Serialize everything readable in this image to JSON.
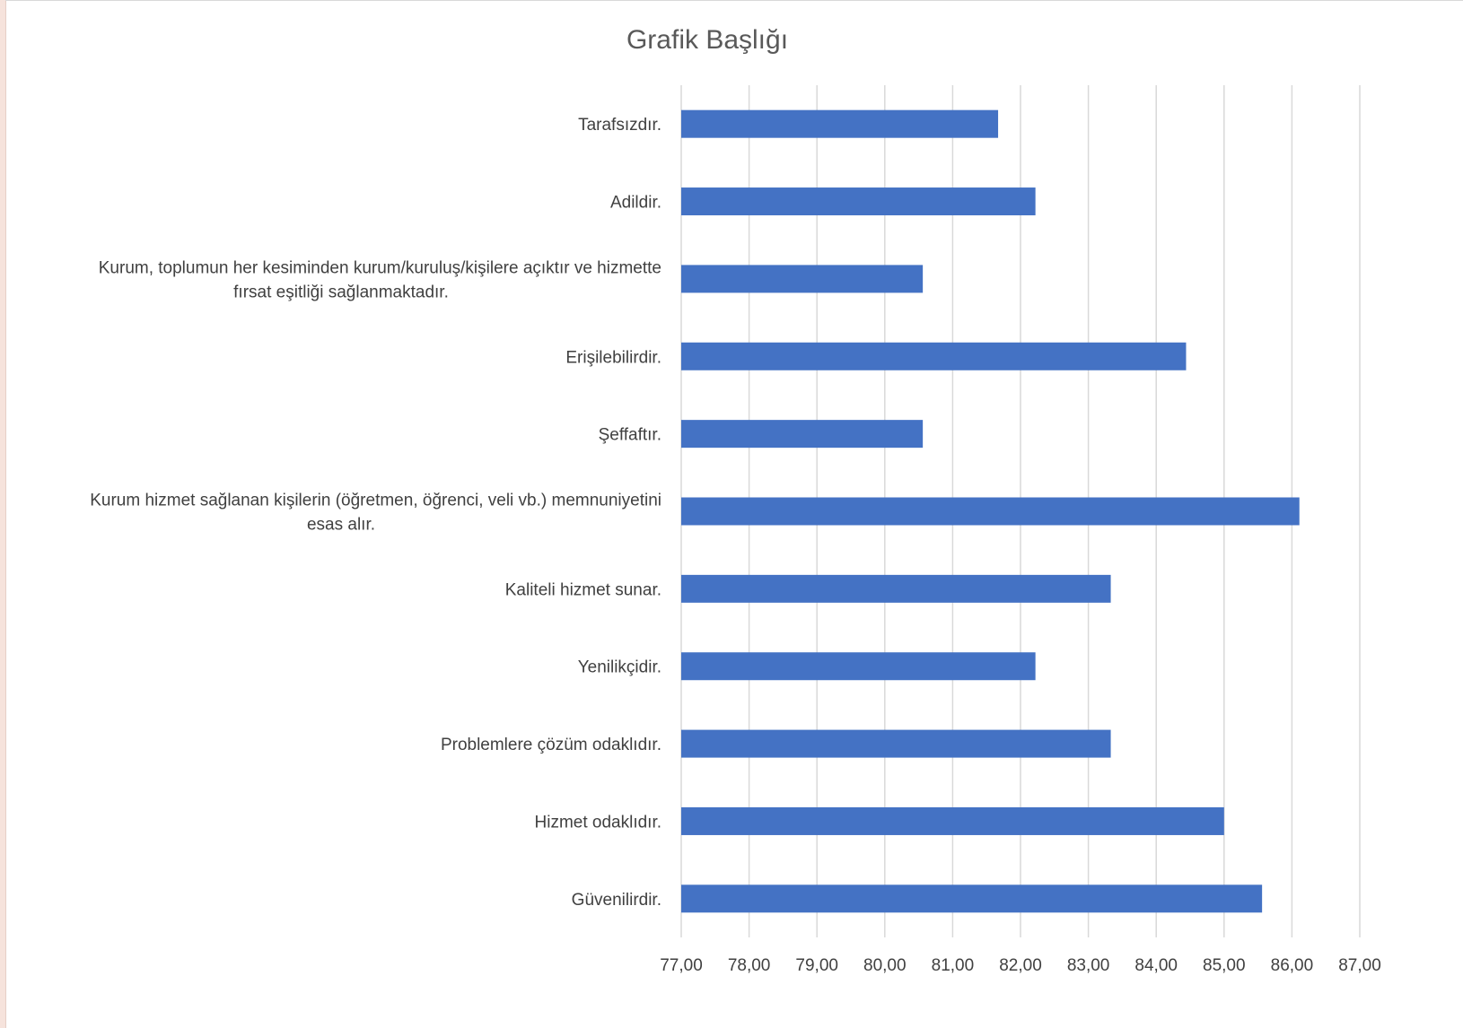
{
  "chart_data": {
    "type": "bar",
    "orientation": "horizontal",
    "title": "Grafik Başlığı",
    "xlabel": "",
    "ylabel": "",
    "categories": [
      "Güvenilirdir.",
      "Hizmet odaklıdır.",
      "Problemlere çözüm odaklıdır.",
      "Yenilikçidir.",
      "Kaliteli hizmet sunar.",
      "Kurum hizmet sağlanan kişilerin (öğretmen, öğrenci, veli vb.) memnuniyetini esas alır.",
      "Şeffaftır.",
      "Erişilebilirdir.",
      "Kurum, toplumun her kesiminden kurum/kuruluş/kişilere açıktır ve hizmette fırsat eşitliği sağlanmaktadır.",
      "Adildir.",
      "Tarafsızdır."
    ],
    "category_label_lines": [
      [
        "Güvenilirdir."
      ],
      [
        "Hizmet odaklıdır."
      ],
      [
        "Problemlere çözüm odaklıdır."
      ],
      [
        "Yenilikçidir."
      ],
      [
        "Kaliteli hizmet sunar."
      ],
      [
        "Kurum hizmet sağlanan kişilerin (öğretmen, öğrenci, veli vb.) memnuniyetini",
        "esas alır."
      ],
      [
        "Şeffaftır."
      ],
      [
        "Erişilebilirdir."
      ],
      [
        "Kurum, toplumun her kesiminden kurum/kuruluş/kişilere açıktır ve hizmette",
        "fırsat eşitliği sağlanmaktadır."
      ],
      [
        "Adildir."
      ],
      [
        "Tarafsızdır."
      ]
    ],
    "values": [
      85.56,
      85.0,
      83.33,
      82.22,
      83.33,
      86.11,
      80.56,
      84.44,
      80.56,
      82.22,
      81.67
    ],
    "xlim": [
      77,
      87
    ],
    "ticks": [
      77,
      78,
      79,
      80,
      81,
      82,
      83,
      84,
      85,
      86,
      87
    ],
    "tick_labels": [
      "77,00",
      "78,00",
      "79,00",
      "80,00",
      "81,00",
      "82,00",
      "83,00",
      "84,00",
      "85,00",
      "86,00",
      "87,00"
    ],
    "bar_color": "#4472C4",
    "gridlines": "vertical",
    "legend": "none"
  }
}
